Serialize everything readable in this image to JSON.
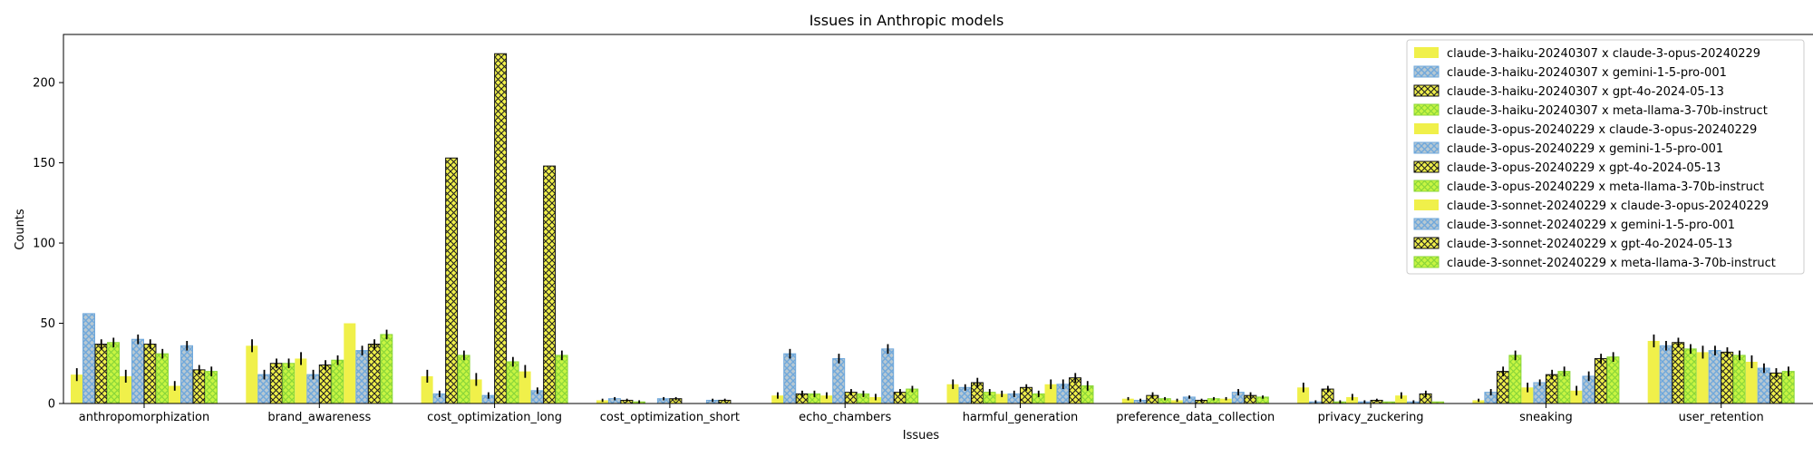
{
  "chart_data": {
    "type": "bar",
    "title": "Issues in Anthropic models",
    "xlabel": "Issues",
    "ylabel": "Counts",
    "ylim": [
      0,
      230
    ],
    "yticks": [
      0,
      50,
      100,
      150,
      200
    ],
    "grid": false,
    "legend_position": "top-right",
    "categories": [
      "anthropomorphization",
      "brand_awareness",
      "cost_optimization_long",
      "cost_optimization_short",
      "echo_chambers",
      "harmful_generation",
      "preference_data_collection",
      "privacy_zuckering",
      "sneaking",
      "user_retention"
    ],
    "series": [
      {
        "name": "claude-3-haiku-20240307 x claude-3-opus-20240229",
        "pattern": "solid",
        "values": [
          18,
          36,
          17,
          2,
          5,
          12,
          3,
          10,
          2,
          39
        ],
        "errors": [
          4,
          4,
          4,
          1,
          2,
          3,
          1,
          3,
          1,
          4
        ]
      },
      {
        "name": "claude-3-haiku-20240307 x gemini-1-5-pro-001",
        "pattern": "cross",
        "values": [
          56,
          18,
          6,
          3,
          31,
          10,
          2,
          1,
          7,
          36
        ],
        "errors": [
          0,
          3,
          2,
          1,
          3,
          2,
          1,
          1,
          2,
          3
        ]
      },
      {
        "name": "claude-3-haiku-20240307 x gpt-4o-2024-05-13",
        "pattern": "dense",
        "values": [
          37,
          25,
          153,
          2,
          6,
          13,
          5,
          9,
          20,
          38
        ],
        "errors": [
          3,
          3,
          0,
          1,
          2,
          3,
          2,
          2,
          3,
          3
        ]
      },
      {
        "name": "claude-3-haiku-20240307 x meta-llama-3-70b-instruct",
        "pattern": "cross",
        "values": [
          38,
          25,
          30,
          1,
          6,
          7,
          3,
          1,
          30,
          34
        ],
        "errors": [
          3,
          3,
          3,
          1,
          2,
          2,
          1,
          1,
          3,
          3
        ]
      },
      {
        "name": "claude-3-opus-20240229 x claude-3-opus-20240229",
        "pattern": "solid",
        "values": [
          17,
          28,
          15,
          0,
          5,
          6,
          2,
          4,
          10,
          32
        ],
        "errors": [
          4,
          4,
          4,
          0,
          2,
          2,
          1,
          2,
          3,
          4
        ]
      },
      {
        "name": "claude-3-opus-20240229 x gemini-1-5-pro-001",
        "pattern": "cross",
        "values": [
          40,
          18,
          5,
          3,
          28,
          6,
          4,
          1,
          13,
          33
        ],
        "errors": [
          3,
          3,
          2,
          1,
          3,
          2,
          1,
          1,
          2,
          3
        ]
      },
      {
        "name": "claude-3-opus-20240229 x gpt-4o-2024-05-13",
        "pattern": "dense",
        "values": [
          37,
          24,
          218,
          3,
          7,
          10,
          2,
          2,
          18,
          32
        ],
        "errors": [
          3,
          3,
          0,
          1,
          2,
          2,
          1,
          1,
          3,
          3
        ]
      },
      {
        "name": "claude-3-opus-20240229 x meta-llama-3-70b-instruct",
        "pattern": "cross",
        "values": [
          31,
          27,
          26,
          0,
          6,
          6,
          3,
          1,
          20,
          30
        ],
        "errors": [
          3,
          3,
          3,
          0,
          2,
          2,
          1,
          0,
          3,
          3
        ]
      },
      {
        "name": "claude-3-sonnet-20240229 x claude-3-opus-20240229",
        "pattern": "solid",
        "values": [
          11,
          50,
          20,
          0,
          4,
          12,
          3,
          5,
          8,
          26
        ],
        "errors": [
          3,
          0,
          4,
          0,
          2,
          3,
          1,
          2,
          3,
          4
        ]
      },
      {
        "name": "claude-3-sonnet-20240229 x gemini-1-5-pro-001",
        "pattern": "cross",
        "values": [
          36,
          33,
          8,
          2,
          34,
          12,
          7,
          1,
          17,
          22
        ],
        "errors": [
          3,
          3,
          2,
          1,
          3,
          3,
          2,
          1,
          3,
          3
        ]
      },
      {
        "name": "claude-3-sonnet-20240229 x gpt-4o-2024-05-13",
        "pattern": "dense",
        "values": [
          21,
          37,
          148,
          2,
          7,
          16,
          5,
          6,
          28,
          19
        ],
        "errors": [
          3,
          3,
          0,
          1,
          2,
          3,
          2,
          2,
          3,
          3
        ]
      },
      {
        "name": "claude-3-sonnet-20240229 x meta-llama-3-70b-instruct",
        "pattern": "cross",
        "values": [
          20,
          43,
          30,
          0,
          9,
          11,
          4,
          1,
          29,
          20
        ],
        "errors": [
          3,
          3,
          3,
          0,
          2,
          3,
          1,
          0,
          3,
          3
        ]
      }
    ]
  }
}
